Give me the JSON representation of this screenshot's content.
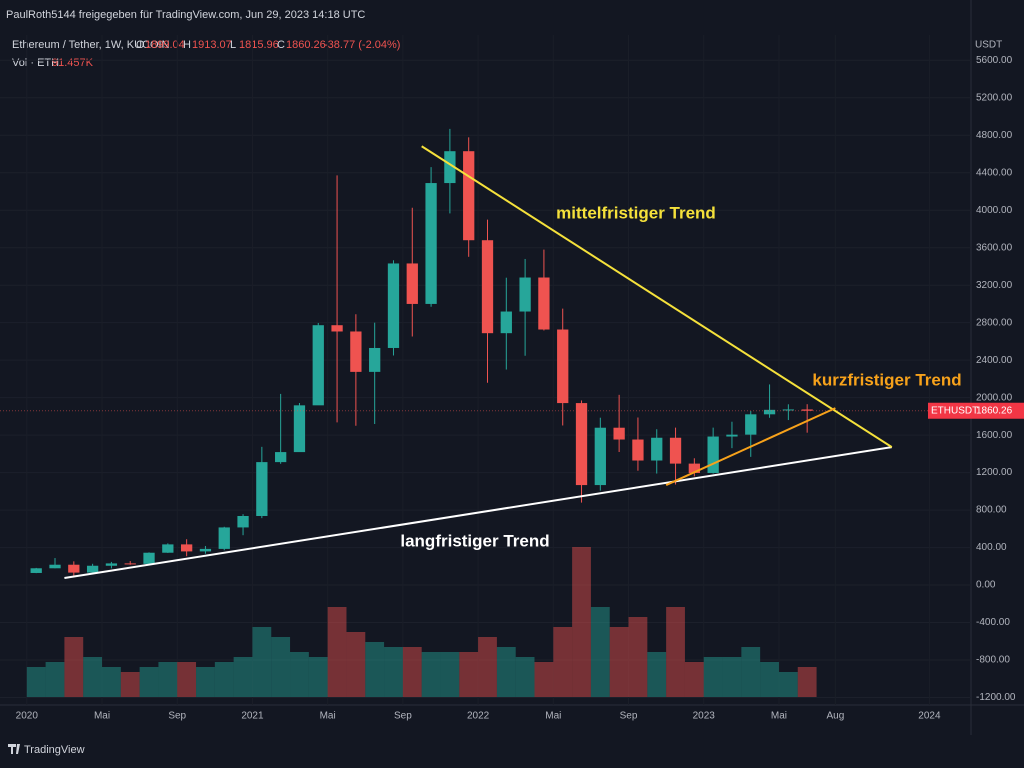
{
  "header": {
    "shared_by": "PaulRoth5144 freigegeben für TradingView.com, Jun 29, 2023 14:18 UTC"
  },
  "legend": {
    "symbol": "Ethereum / Tether, 1W, KUCOIN",
    "ohlc": [
      {
        "label": "O",
        "value": "1899.04"
      },
      {
        "label": "H",
        "value": "1913.07"
      },
      {
        "label": "L",
        "value": "1815.96"
      },
      {
        "label": "C",
        "value": "1860.26"
      }
    ],
    "change": "-38.77 (-2.04%)",
    "volume_label": "Vol · ETH",
    "volume_value": "91.457K"
  },
  "footer": {
    "brand": "TradingView"
  },
  "chart_data": {
    "type": "candlestick",
    "currency": "USDT",
    "up_color": "#26a69a",
    "down_color": "#ef5350",
    "x": [
      "2020-01",
      "2020-02",
      "2020-03",
      "2020-04",
      "2020-05",
      "2020-06",
      "2020-07",
      "2020-08",
      "2020-09",
      "2020-10",
      "2020-11",
      "2020-12",
      "2021-01",
      "2021-02",
      "2021-03",
      "2021-04",
      "2021-05",
      "2021-06",
      "2021-07",
      "2021-08",
      "2021-09",
      "2021-10",
      "2021-11",
      "2021-12",
      "2022-01",
      "2022-02",
      "2022-03",
      "2022-04",
      "2022-05",
      "2022-06",
      "2022-07",
      "2022-08",
      "2022-09",
      "2022-10",
      "2022-11",
      "2022-12",
      "2023-01",
      "2023-02",
      "2023-03",
      "2023-04",
      "2023-05",
      "2023-06"
    ],
    "open": [
      129,
      179,
      217,
      133,
      206,
      231,
      226,
      345,
      434,
      359,
      386,
      615,
      737,
      1312,
      1419,
      1918,
      2773,
      2706,
      2275,
      2530,
      3432,
      3000,
      4290,
      4630,
      3680,
      2688,
      2919,
      3282,
      2727,
      1942,
      1067,
      1679,
      1553,
      1329,
      1572,
      1296,
      1196,
      1585,
      1605,
      1822,
      1870,
      1874
    ],
    "high": [
      183,
      288,
      253,
      227,
      247,
      256,
      349,
      445,
      489,
      417,
      622,
      756,
      1475,
      2040,
      1943,
      2797,
      4372,
      2890,
      2800,
      3466,
      4027,
      4460,
      4868,
      4778,
      3900,
      3280,
      3480,
      3580,
      2950,
      1970,
      1786,
      2030,
      1788,
      1663,
      1680,
      1353,
      1680,
      1743,
      1857,
      2141,
      1929,
      1930
    ],
    "low": [
      127,
      179,
      90,
      130,
      178,
      216,
      222,
      343,
      308,
      334,
      372,
      532,
      714,
      1294,
      1433,
      1936,
      1736,
      1700,
      1719,
      2450,
      2652,
      2970,
      3966,
      3503,
      2159,
      2300,
      2447,
      2717,
      1703,
      880,
      1008,
      1420,
      1220,
      1190,
      1073,
      1160,
      1190,
      1461,
      1368,
      1785,
      1761,
      1626
    ],
    "close": [
      179,
      217,
      133,
      206,
      231,
      226,
      345,
      434,
      359,
      386,
      615,
      737,
      1312,
      1419,
      1918,
      2773,
      2706,
      2275,
      2530,
      3432,
      3000,
      4290,
      4630,
      3680,
      2688,
      2919,
      3282,
      2727,
      1942,
      1067,
      1679,
      1553,
      1329,
      1572,
      1296,
      1196,
      1585,
      1605,
      1822,
      1870,
      1874,
      1860
    ],
    "volume": [
      300,
      350,
      600,
      400,
      300,
      250,
      300,
      350,
      350,
      300,
      350,
      400,
      700,
      600,
      450,
      400,
      900,
      650,
      550,
      500,
      500,
      450,
      450,
      450,
      600,
      500,
      400,
      350,
      700,
      1500,
      900,
      700,
      800,
      450,
      900,
      350,
      400,
      400,
      500,
      350,
      250,
      300
    ],
    "xlim": [
      "2019-12",
      "2024-03"
    ],
    "xticks": [
      {
        "value": "2020-01",
        "label": "2020"
      },
      {
        "value": "2020-05",
        "label": "Mai"
      },
      {
        "value": "2020-09",
        "label": "Sep"
      },
      {
        "value": "2021-01",
        "label": "2021"
      },
      {
        "value": "2021-05",
        "label": "Mai"
      },
      {
        "value": "2021-09",
        "label": "Sep"
      },
      {
        "value": "2022-01",
        "label": "2022"
      },
      {
        "value": "2022-05",
        "label": "Mai"
      },
      {
        "value": "2022-09",
        "label": "Sep"
      },
      {
        "value": "2023-01",
        "label": "2023"
      },
      {
        "value": "2023-05",
        "label": "Mai"
      },
      {
        "value": "2023-08",
        "label": "Aug"
      },
      {
        "value": "2024-01",
        "label": "2024"
      }
    ],
    "ylim": [
      -1280,
      5870
    ],
    "yticks": [
      {
        "value": 5600,
        "label": "5600.00"
      },
      {
        "value": 5200,
        "label": "5200.00"
      },
      {
        "value": 4800,
        "label": "4800.00"
      },
      {
        "value": 4400,
        "label": "4400.00"
      },
      {
        "value": 4000,
        "label": "4000.00"
      },
      {
        "value": 3600,
        "label": "3600.00"
      },
      {
        "value": 3200,
        "label": "3200.00"
      },
      {
        "value": 2800,
        "label": "2800.00"
      },
      {
        "value": 2400,
        "label": "2400.00"
      },
      {
        "value": 2000,
        "label": "2000.00"
      },
      {
        "value": 1600,
        "label": "1600.00"
      },
      {
        "value": 1200,
        "label": "1200.00"
      },
      {
        "value": 800,
        "label": "800.00"
      },
      {
        "value": 400,
        "label": "400.00"
      },
      {
        "value": 0,
        "label": "0.00"
      },
      {
        "value": -400,
        "label": "-400.00"
      },
      {
        "value": -800,
        "label": "-800.00"
      },
      {
        "value": -1200,
        "label": "-1200.00"
      }
    ],
    "last_price": {
      "label": "ETHUSDT",
      "value": 1860.26
    },
    "trendlines": [
      {
        "label": "langfristiger Trend",
        "color": "#ffffff",
        "from": {
          "x": "2020-03",
          "y": 75
        },
        "to": {
          "x": "2023-11",
          "y": 1472
        }
      },
      {
        "label": "mittelfristiger Trend",
        "color": "#f5e13b",
        "from": {
          "x": "2021-10",
          "y": 4683
        },
        "to": {
          "x": "2023-11",
          "y": 1472
        }
      },
      {
        "label": "kurzfristiger Trend",
        "color": "#f7a21b",
        "from": {
          "x": "2022-11",
          "y": 1067
        },
        "to": {
          "x": "2023-08",
          "y": 1888
        }
      }
    ]
  }
}
